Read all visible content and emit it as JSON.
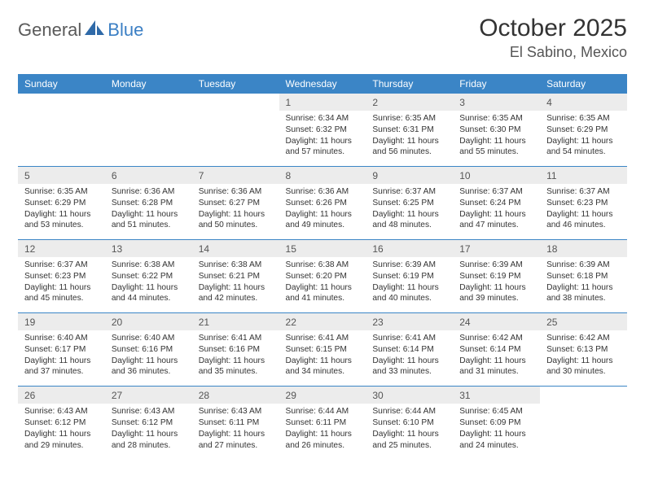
{
  "logo": {
    "text1": "General",
    "text2": "Blue"
  },
  "title": "October 2025",
  "location": "El Sabino, Mexico",
  "colors": {
    "header_bg": "#3b85c6",
    "header_text": "#ffffff",
    "daynum_bg": "#ececec",
    "daynum_text": "#555555",
    "detail_text": "#333333",
    "logo_gray": "#5a5a5a",
    "logo_blue": "#3b7fc4",
    "page_bg": "#ffffff"
  },
  "daysOfWeek": [
    "Sunday",
    "Monday",
    "Tuesday",
    "Wednesday",
    "Thursday",
    "Friday",
    "Saturday"
  ],
  "weeks": [
    [
      null,
      null,
      null,
      {
        "n": "1",
        "sr": "Sunrise: 6:34 AM",
        "ss": "Sunset: 6:32 PM",
        "dl": "Daylight: 11 hours and 57 minutes."
      },
      {
        "n": "2",
        "sr": "Sunrise: 6:35 AM",
        "ss": "Sunset: 6:31 PM",
        "dl": "Daylight: 11 hours and 56 minutes."
      },
      {
        "n": "3",
        "sr": "Sunrise: 6:35 AM",
        "ss": "Sunset: 6:30 PM",
        "dl": "Daylight: 11 hours and 55 minutes."
      },
      {
        "n": "4",
        "sr": "Sunrise: 6:35 AM",
        "ss": "Sunset: 6:29 PM",
        "dl": "Daylight: 11 hours and 54 minutes."
      }
    ],
    [
      {
        "n": "5",
        "sr": "Sunrise: 6:35 AM",
        "ss": "Sunset: 6:29 PM",
        "dl": "Daylight: 11 hours and 53 minutes."
      },
      {
        "n": "6",
        "sr": "Sunrise: 6:36 AM",
        "ss": "Sunset: 6:28 PM",
        "dl": "Daylight: 11 hours and 51 minutes."
      },
      {
        "n": "7",
        "sr": "Sunrise: 6:36 AM",
        "ss": "Sunset: 6:27 PM",
        "dl": "Daylight: 11 hours and 50 minutes."
      },
      {
        "n": "8",
        "sr": "Sunrise: 6:36 AM",
        "ss": "Sunset: 6:26 PM",
        "dl": "Daylight: 11 hours and 49 minutes."
      },
      {
        "n": "9",
        "sr": "Sunrise: 6:37 AM",
        "ss": "Sunset: 6:25 PM",
        "dl": "Daylight: 11 hours and 48 minutes."
      },
      {
        "n": "10",
        "sr": "Sunrise: 6:37 AM",
        "ss": "Sunset: 6:24 PM",
        "dl": "Daylight: 11 hours and 47 minutes."
      },
      {
        "n": "11",
        "sr": "Sunrise: 6:37 AM",
        "ss": "Sunset: 6:23 PM",
        "dl": "Daylight: 11 hours and 46 minutes."
      }
    ],
    [
      {
        "n": "12",
        "sr": "Sunrise: 6:37 AM",
        "ss": "Sunset: 6:23 PM",
        "dl": "Daylight: 11 hours and 45 minutes."
      },
      {
        "n": "13",
        "sr": "Sunrise: 6:38 AM",
        "ss": "Sunset: 6:22 PM",
        "dl": "Daylight: 11 hours and 44 minutes."
      },
      {
        "n": "14",
        "sr": "Sunrise: 6:38 AM",
        "ss": "Sunset: 6:21 PM",
        "dl": "Daylight: 11 hours and 42 minutes."
      },
      {
        "n": "15",
        "sr": "Sunrise: 6:38 AM",
        "ss": "Sunset: 6:20 PM",
        "dl": "Daylight: 11 hours and 41 minutes."
      },
      {
        "n": "16",
        "sr": "Sunrise: 6:39 AM",
        "ss": "Sunset: 6:19 PM",
        "dl": "Daylight: 11 hours and 40 minutes."
      },
      {
        "n": "17",
        "sr": "Sunrise: 6:39 AM",
        "ss": "Sunset: 6:19 PM",
        "dl": "Daylight: 11 hours and 39 minutes."
      },
      {
        "n": "18",
        "sr": "Sunrise: 6:39 AM",
        "ss": "Sunset: 6:18 PM",
        "dl": "Daylight: 11 hours and 38 minutes."
      }
    ],
    [
      {
        "n": "19",
        "sr": "Sunrise: 6:40 AM",
        "ss": "Sunset: 6:17 PM",
        "dl": "Daylight: 11 hours and 37 minutes."
      },
      {
        "n": "20",
        "sr": "Sunrise: 6:40 AM",
        "ss": "Sunset: 6:16 PM",
        "dl": "Daylight: 11 hours and 36 minutes."
      },
      {
        "n": "21",
        "sr": "Sunrise: 6:41 AM",
        "ss": "Sunset: 6:16 PM",
        "dl": "Daylight: 11 hours and 35 minutes."
      },
      {
        "n": "22",
        "sr": "Sunrise: 6:41 AM",
        "ss": "Sunset: 6:15 PM",
        "dl": "Daylight: 11 hours and 34 minutes."
      },
      {
        "n": "23",
        "sr": "Sunrise: 6:41 AM",
        "ss": "Sunset: 6:14 PM",
        "dl": "Daylight: 11 hours and 33 minutes."
      },
      {
        "n": "24",
        "sr": "Sunrise: 6:42 AM",
        "ss": "Sunset: 6:14 PM",
        "dl": "Daylight: 11 hours and 31 minutes."
      },
      {
        "n": "25",
        "sr": "Sunrise: 6:42 AM",
        "ss": "Sunset: 6:13 PM",
        "dl": "Daylight: 11 hours and 30 minutes."
      }
    ],
    [
      {
        "n": "26",
        "sr": "Sunrise: 6:43 AM",
        "ss": "Sunset: 6:12 PM",
        "dl": "Daylight: 11 hours and 29 minutes."
      },
      {
        "n": "27",
        "sr": "Sunrise: 6:43 AM",
        "ss": "Sunset: 6:12 PM",
        "dl": "Daylight: 11 hours and 28 minutes."
      },
      {
        "n": "28",
        "sr": "Sunrise: 6:43 AM",
        "ss": "Sunset: 6:11 PM",
        "dl": "Daylight: 11 hours and 27 minutes."
      },
      {
        "n": "29",
        "sr": "Sunrise: 6:44 AM",
        "ss": "Sunset: 6:11 PM",
        "dl": "Daylight: 11 hours and 26 minutes."
      },
      {
        "n": "30",
        "sr": "Sunrise: 6:44 AM",
        "ss": "Sunset: 6:10 PM",
        "dl": "Daylight: 11 hours and 25 minutes."
      },
      {
        "n": "31",
        "sr": "Sunrise: 6:45 AM",
        "ss": "Sunset: 6:09 PM",
        "dl": "Daylight: 11 hours and 24 minutes."
      },
      null
    ]
  ]
}
